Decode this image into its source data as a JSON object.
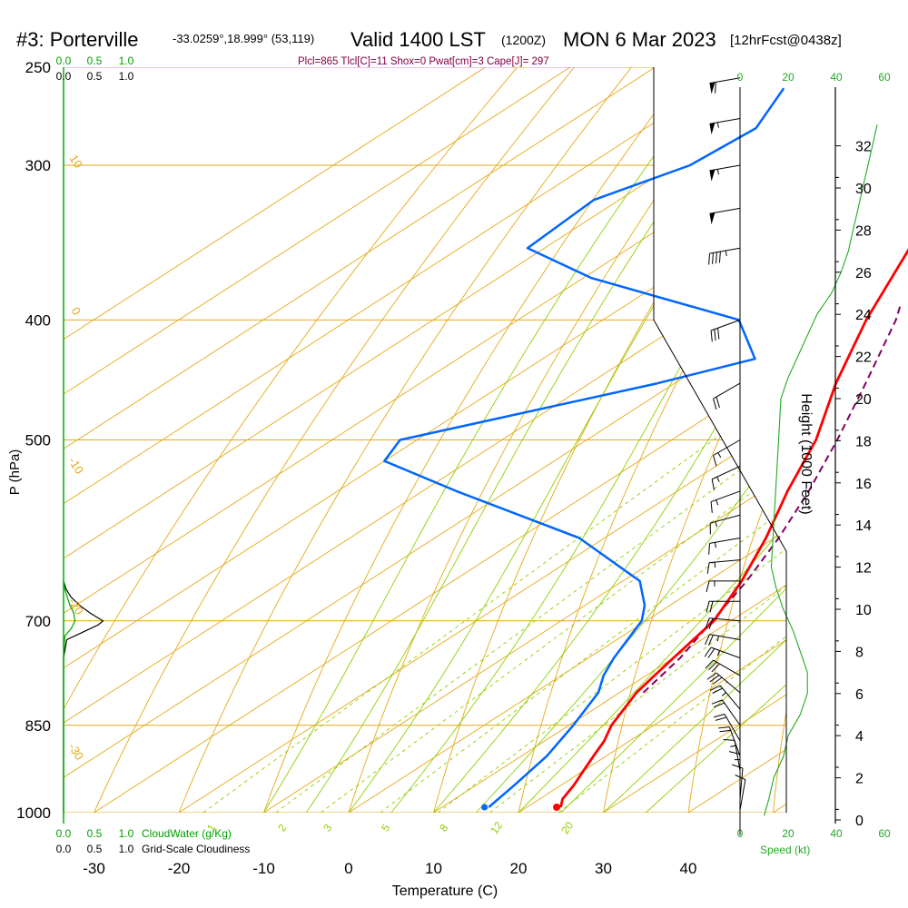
{
  "header": {
    "title_station": "#3: Porterville",
    "title_coords": "-33.0259°,18.999° (53,119)",
    "title_valid": "Valid 1400 LST",
    "title_utc": "(1200Z)",
    "title_date": "MON 6 Mar 2023",
    "title_fcst": "[12hrFcst@0438z]",
    "indices": "Plcl=865 Tlcl[C]=11 Shox=0 Pwat[cm]=3 Cape[J]= 297"
  },
  "colors": {
    "temperature": "#ff0000",
    "dewpoint": "#0066ff",
    "parcel": "#800060",
    "isotherm": "#e6a817",
    "isobar": "#e6a817",
    "dry_adiabat": "#e6a817",
    "moist_adiabat": "#8fd000",
    "mixing_ratio": "#8fd000",
    "cloud": "#00a000",
    "wind": "#000000",
    "speed": "#22aa22",
    "indices": "#800040"
  },
  "chart_data": {
    "type": "line",
    "xlabel": "Temperature (C)",
    "ylabel": "P (hPa)",
    "right_label": "Height (1000 Feet)",
    "x_ticks": [
      "-30",
      "-20",
      "-10",
      "0",
      "10",
      "20",
      "30",
      "40"
    ],
    "pressure_ticks": [
      "250",
      "300",
      "400",
      "500",
      "700",
      "850",
      "1000"
    ],
    "height_ticks": [
      "0",
      "2",
      "4",
      "6",
      "8",
      "10",
      "12",
      "14",
      "16",
      "18",
      "20",
      "22",
      "24",
      "26",
      "28",
      "30",
      "32"
    ],
    "isotherm_labels": [
      "0",
      "10",
      "20",
      "30"
    ],
    "dry_adiabat_labels": [
      "10",
      "0",
      "-10",
      "-20",
      "-30"
    ],
    "mixing_ratio_labels": [
      "1",
      "2",
      "3",
      "5",
      "8",
      "12",
      "20"
    ],
    "cloud_scale_top_green": [
      "0.0",
      "0.5",
      "1.0"
    ],
    "cloud_scale_top_black": [
      "0.0",
      "0.5",
      "1.0"
    ],
    "cloud_scale_bottom_green": [
      "0.0",
      "0.5",
      "1.0"
    ],
    "cloud_scale_bottom_black": [
      "0.0",
      "0.5",
      "1.0"
    ],
    "cloudwater_label": "CloudWater (g/Kg)",
    "cloudiness_label": "Grid-Scale Cloudiness",
    "speed_ticks": [
      "0",
      "20",
      "40",
      "60"
    ],
    "speed_label": "Speed (kt)",
    "series": [
      {
        "name": "temperature",
        "pressure": [
          990,
          975,
          950,
          925,
          900,
          875,
          850,
          800,
          775,
          750,
          700,
          650,
          600,
          550,
          500,
          450,
          400,
          350,
          300,
          280,
          260
        ],
        "temp": [
          24,
          22.7,
          21.5,
          20,
          18.5,
          17,
          15,
          12,
          11,
          10,
          8,
          4,
          -1,
          -7,
          -13,
          -21,
          -29,
          -37,
          -46,
          -50,
          -53
        ]
      },
      {
        "name": "dewpoint",
        "pressure": [
          990,
          950,
          900,
          850,
          800,
          775,
          750,
          700,
          680,
          650,
          600,
          550,
          520,
          500,
          450,
          430,
          400,
          370,
          350,
          320,
          300,
          280,
          260
        ],
        "temp": [
          15.5,
          14.5,
          13,
          10.5,
          7.5,
          5,
          3,
          -0.5,
          -3,
          -8,
          -23,
          -46,
          -60,
          -62,
          -42,
          -35,
          -44,
          -69,
          -82,
          -83,
          -78,
          -77,
          -81
        ]
      },
      {
        "name": "parcel",
        "pressure": [
          800,
          750,
          700,
          650,
          600,
          550,
          500,
          450,
          400,
          390
        ],
        "temp": [
          12.8,
          10.8,
          7.8,
          4.6,
          0.5,
          -4.5,
          -10.5,
          -17.5,
          -25.5,
          -27.5
        ]
      },
      {
        "name": "cloud_fraction",
        "pressure": [
          1000,
          750,
          725,
          715,
          705,
          700,
          690,
          680,
          670,
          660,
          650
        ],
        "value": [
          0,
          0,
          0.05,
          0.3,
          0.55,
          0.62,
          0.42,
          0.25,
          0.12,
          0.04,
          0
        ]
      },
      {
        "name": "cloud_water",
        "pressure": [
          1000,
          750,
          720,
          710,
          700,
          690,
          680,
          670,
          660,
          650
        ],
        "value": [
          0,
          0,
          0.02,
          0.12,
          0.18,
          0.16,
          0.1,
          0.06,
          0.02,
          0
        ]
      },
      {
        "name": "wind_speed",
        "height_kft": [
          0.2,
          1,
          2,
          3,
          4,
          5,
          6,
          7,
          8,
          9,
          10,
          11,
          12,
          14,
          16,
          18,
          20,
          21,
          22,
          24,
          25,
          26,
          27,
          28,
          29,
          30,
          31,
          32,
          33
        ],
        "speed": [
          10,
          12,
          14,
          18,
          20,
          25,
          28,
          28,
          25,
          22,
          18,
          15,
          13,
          14,
          15,
          16,
          17,
          20,
          24,
          32,
          38,
          42,
          45,
          47,
          49,
          51,
          53,
          55,
          57
        ]
      },
      {
        "name": "wind_barbs",
        "pressure": [
          995,
          975,
          950,
          925,
          900,
          875,
          850,
          825,
          800,
          775,
          750,
          725,
          700,
          675,
          650,
          625,
          600,
          575,
          550,
          525,
          500,
          450,
          400,
          350,
          325,
          300,
          275,
          255
        ],
        "speed": [
          10,
          12,
          14,
          16,
          18,
          20,
          22,
          25,
          28,
          28,
          26,
          25,
          22,
          18,
          15,
          13,
          14,
          15,
          15,
          16,
          17,
          20,
          30,
          45,
          50,
          55,
          55,
          60
        ],
        "direction": [
          170,
          175,
          180,
          190,
          200,
          210,
          215,
          220,
          230,
          240,
          250,
          260,
          265,
          270,
          270,
          275,
          280,
          285,
          290,
          295,
          300,
          300,
          290,
          280,
          280,
          280,
          280,
          280
        ]
      }
    ]
  }
}
